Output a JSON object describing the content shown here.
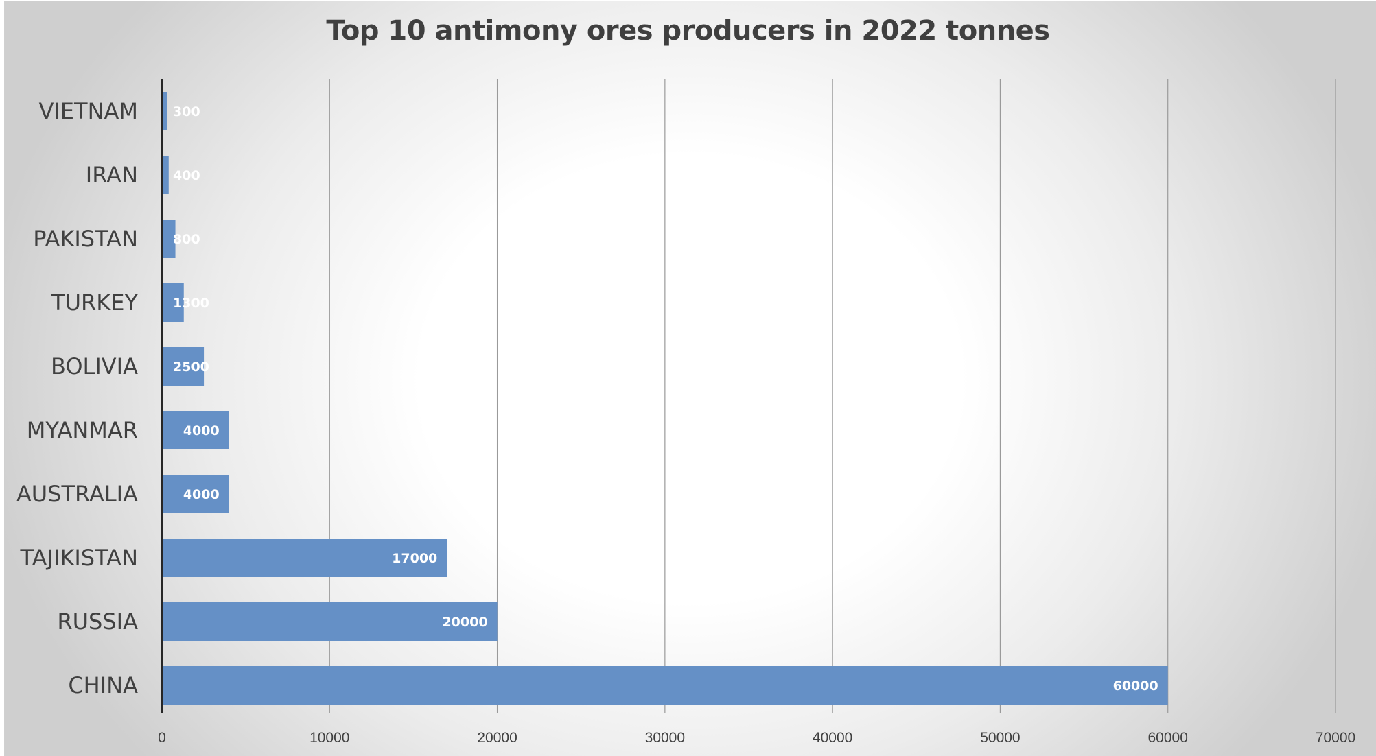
{
  "chart_data": {
    "type": "bar",
    "orientation": "horizontal",
    "title": "Top 10 antimony ores producers in 2022 tonnes",
    "categories": [
      "VIETNAM",
      "IRAN",
      "PAKISTAN",
      "TURKEY",
      "BOLIVIA",
      "MYANMAR",
      "AUSTRALIA",
      "TAJIKISTAN",
      "RUSSIA",
      "CHINA"
    ],
    "values": [
      300,
      400,
      800,
      1300,
      2500,
      4000,
      4000,
      17000,
      20000,
      60000
    ],
    "data_labels": [
      "300",
      "400",
      "800",
      "1300",
      "2500",
      "4000",
      "4000",
      "17000",
      "20000",
      "60000"
    ],
    "xlim": [
      0,
      70000
    ],
    "xticks": [
      0,
      10000,
      20000,
      30000,
      40000,
      50000,
      60000,
      70000
    ],
    "xtick_labels": [
      "0",
      "10000",
      "20000",
      "30000",
      "40000",
      "50000",
      "60000",
      "70000"
    ],
    "xlabel": "",
    "ylabel": "",
    "grid": true,
    "legend": "none",
    "bar_color": "#6590c6"
  }
}
